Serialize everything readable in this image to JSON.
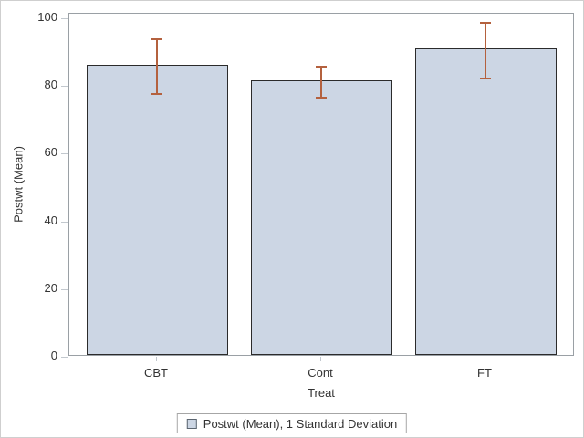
{
  "window": {
    "background": "#ffffff",
    "border_color": "#cfcfcf"
  },
  "chart_data": {
    "type": "bar",
    "title": "",
    "categories": [
      "CBT",
      "Cont",
      "FT"
    ],
    "series": [
      {
        "name": "Postwt (Mean)",
        "values": [
          85.7,
          81.1,
          90.5
        ],
        "error_low": [
          77.3,
          76.3,
          82.0
        ],
        "error_high": [
          94.1,
          85.9,
          99.0
        ]
      }
    ],
    "xlabel": "Treat",
    "ylabel": "Postwt (Mean)",
    "ylim": [
      0,
      100
    ],
    "yticks": [
      0,
      20,
      40,
      60,
      80,
      100
    ],
    "grid": false,
    "legend": {
      "position": "bottom",
      "entries": [
        "Postwt (Mean), 1 Standard Deviation"
      ]
    },
    "colors": {
      "bar_fill": "#ccd6e4",
      "bar_border": "#2b2b2b",
      "error_bar": "#b4613e",
      "axis_line": "#9aa0a5",
      "tick": "#c2c8ce",
      "text": "#333333",
      "legend_border": "#a6a6a6"
    }
  }
}
